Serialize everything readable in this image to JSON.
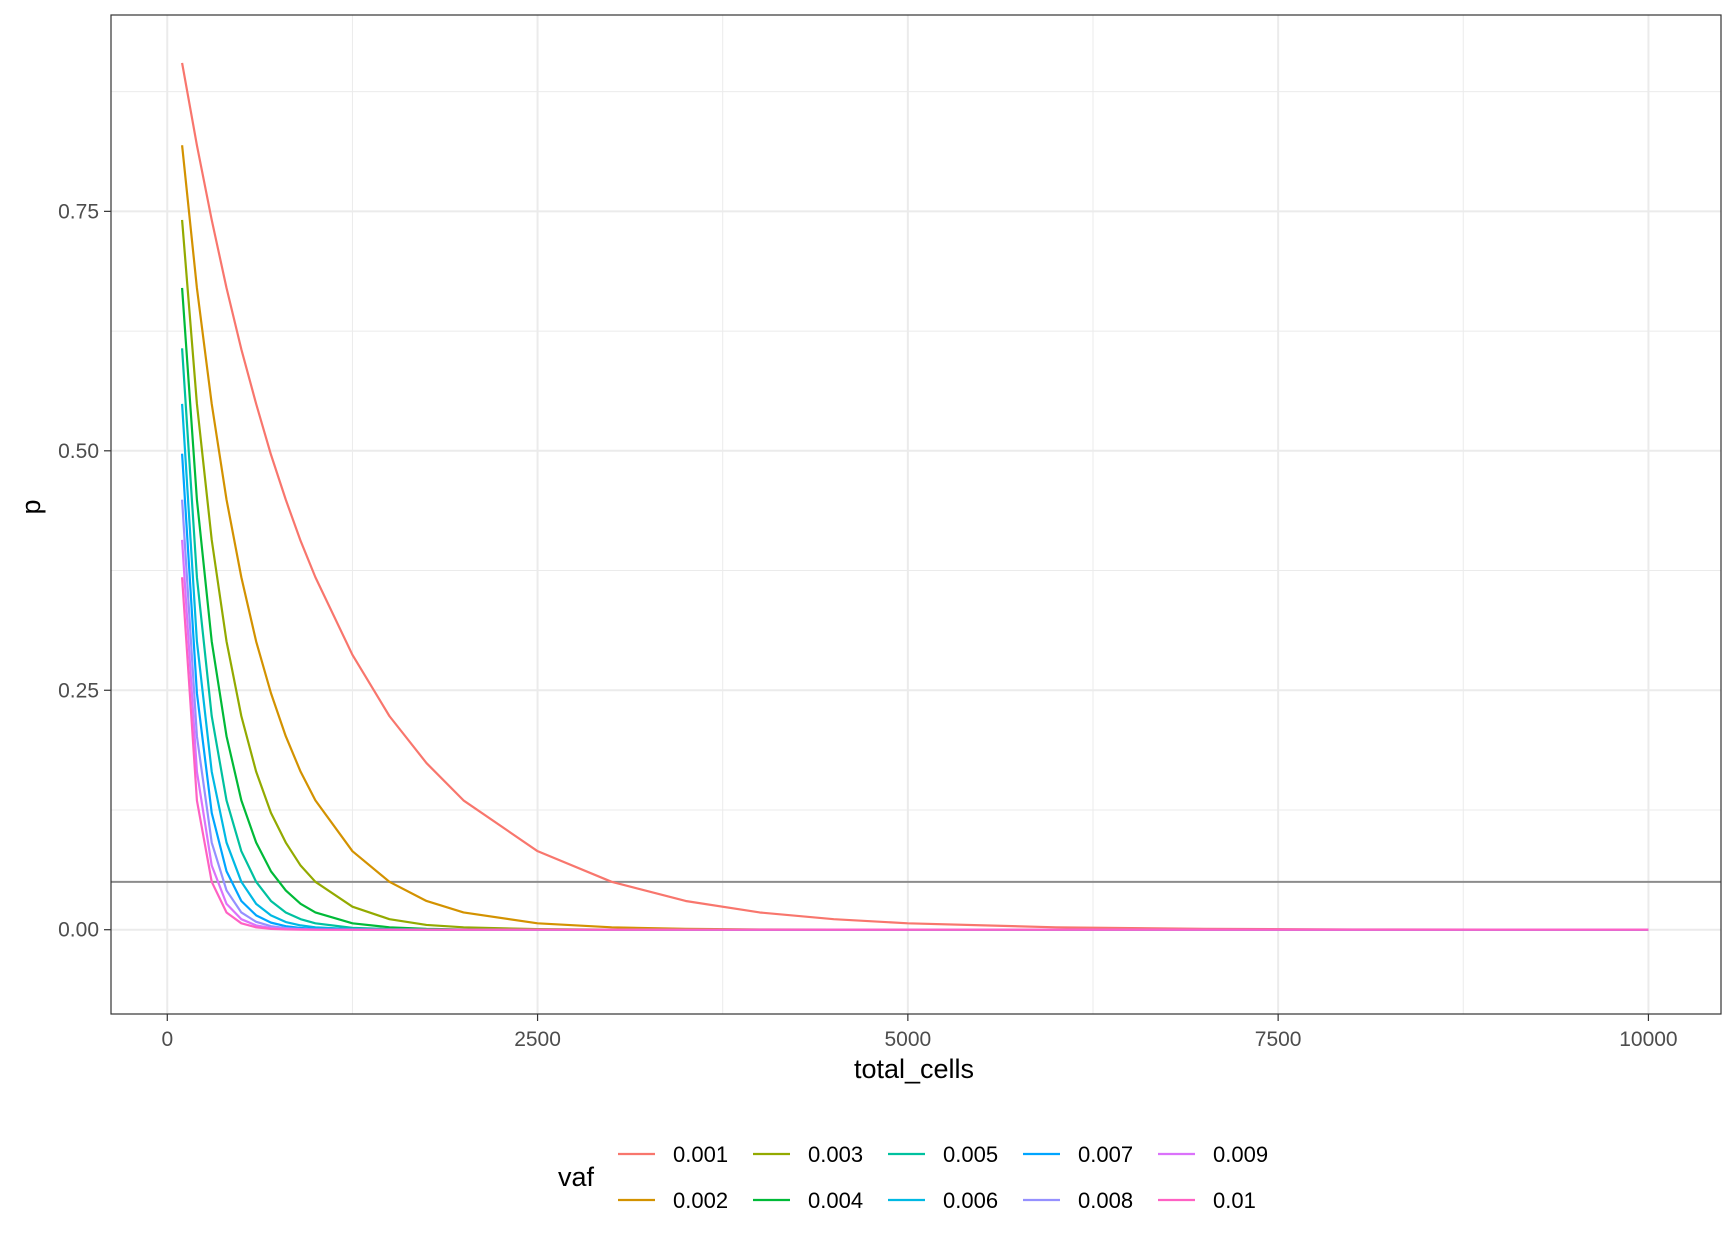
{
  "chart_data": {
    "type": "line",
    "title": "",
    "xlabel": "total_cells",
    "ylabel": "p",
    "xlim": [
      -380,
      10490
    ],
    "ylim": [
      -0.088,
      0.955
    ],
    "x_ticks": [
      0,
      2500,
      5000,
      7500,
      10000
    ],
    "y_ticks": [
      0.0,
      0.25,
      0.5,
      0.75
    ],
    "x_tick_labels": [
      "0",
      "2500",
      "5000",
      "7500",
      "10000"
    ],
    "y_tick_labels": [
      "0.00",
      "0.25",
      "0.50",
      "0.75"
    ],
    "grid": true,
    "hline": {
      "y": 0.05,
      "color": "#8c8c8c"
    },
    "legend": {
      "title": "vaf",
      "position": "bottom"
    },
    "x": [
      100,
      200,
      300,
      400,
      500,
      600,
      700,
      800,
      900,
      1000,
      1250,
      1500,
      1750,
      2000,
      2500,
      3000,
      3500,
      4000,
      4500,
      5000,
      6000,
      7000,
      8000,
      9000,
      10000
    ],
    "series": [
      {
        "name": "0.001",
        "color": "#F8766D",
        "values": [
          0.905,
          0.819,
          0.741,
          0.67,
          0.606,
          0.549,
          0.496,
          0.449,
          0.406,
          0.368,
          0.287,
          0.223,
          0.174,
          0.135,
          0.082,
          0.05,
          0.03,
          0.018,
          0.011,
          0.0067,
          0.0025,
          0.0009,
          0.0003,
          0.0001,
          0.0
        ]
      },
      {
        "name": "0.002",
        "color": "#D39200",
        "values": [
          0.819,
          0.67,
          0.549,
          0.449,
          0.368,
          0.301,
          0.247,
          0.202,
          0.165,
          0.135,
          0.082,
          0.05,
          0.03,
          0.018,
          0.0067,
          0.0025,
          0.0009,
          0.0003,
          0.0001,
          0.0,
          0.0,
          0.0,
          0.0,
          0.0,
          0.0
        ]
      },
      {
        "name": "0.003",
        "color": "#93AA00",
        "values": [
          0.741,
          0.549,
          0.407,
          0.301,
          0.223,
          0.165,
          0.122,
          0.091,
          0.067,
          0.05,
          0.024,
          0.011,
          0.005,
          0.0025,
          0.0006,
          0.0001,
          0.0,
          0.0,
          0.0,
          0.0,
          0.0,
          0.0,
          0.0,
          0.0,
          0.0
        ]
      },
      {
        "name": "0.004",
        "color": "#00BA38",
        "values": [
          0.67,
          0.449,
          0.301,
          0.202,
          0.135,
          0.091,
          0.061,
          0.041,
          0.027,
          0.018,
          0.0067,
          0.0025,
          0.0009,
          0.0003,
          0.0,
          0.0,
          0.0,
          0.0,
          0.0,
          0.0,
          0.0,
          0.0,
          0.0,
          0.0,
          0.0
        ]
      },
      {
        "name": "0.005",
        "color": "#00C19F",
        "values": [
          0.607,
          0.368,
          0.223,
          0.135,
          0.082,
          0.05,
          0.03,
          0.018,
          0.011,
          0.0067,
          0.0019,
          0.0006,
          0.0002,
          0.0,
          0.0,
          0.0,
          0.0,
          0.0,
          0.0,
          0.0,
          0.0,
          0.0,
          0.0,
          0.0,
          0.0
        ]
      },
      {
        "name": "0.006",
        "color": "#00B9E3",
        "values": [
          0.549,
          0.301,
          0.165,
          0.091,
          0.05,
          0.027,
          0.015,
          0.008,
          0.0045,
          0.0025,
          0.0006,
          0.0001,
          0.0,
          0.0,
          0.0,
          0.0,
          0.0,
          0.0,
          0.0,
          0.0,
          0.0,
          0.0,
          0.0,
          0.0,
          0.0
        ]
      },
      {
        "name": "0.007",
        "color": "#00A5FF",
        "values": [
          0.497,
          0.247,
          0.122,
          0.061,
          0.03,
          0.015,
          0.0074,
          0.0037,
          0.0018,
          0.0009,
          0.0002,
          0.0,
          0.0,
          0.0,
          0.0,
          0.0,
          0.0,
          0.0,
          0.0,
          0.0,
          0.0,
          0.0,
          0.0,
          0.0,
          0.0
        ]
      },
      {
        "name": "0.008",
        "color": "#9590FF",
        "values": [
          0.449,
          0.202,
          0.091,
          0.041,
          0.018,
          0.0082,
          0.0037,
          0.0017,
          0.0007,
          0.0003,
          0.0,
          0.0,
          0.0,
          0.0,
          0.0,
          0.0,
          0.0,
          0.0,
          0.0,
          0.0,
          0.0,
          0.0,
          0.0,
          0.0,
          0.0
        ]
      },
      {
        "name": "0.009",
        "color": "#DB72FB",
        "values": [
          0.407,
          0.165,
          0.067,
          0.027,
          0.011,
          0.0045,
          0.0018,
          0.0007,
          0.0003,
          0.0001,
          0.0,
          0.0,
          0.0,
          0.0,
          0.0,
          0.0,
          0.0,
          0.0,
          0.0,
          0.0,
          0.0,
          0.0,
          0.0,
          0.0,
          0.0
        ]
      },
      {
        "name": "0.01",
        "color": "#FF61C3",
        "values": [
          0.368,
          0.135,
          0.05,
          0.018,
          0.0067,
          0.0025,
          0.0009,
          0.0003,
          0.0001,
          0.0,
          0.0,
          0.0,
          0.0,
          0.0,
          0.0,
          0.0,
          0.0,
          0.0,
          0.0,
          0.0,
          0.0,
          0.0,
          0.0,
          0.0,
          0.0
        ]
      }
    ]
  }
}
